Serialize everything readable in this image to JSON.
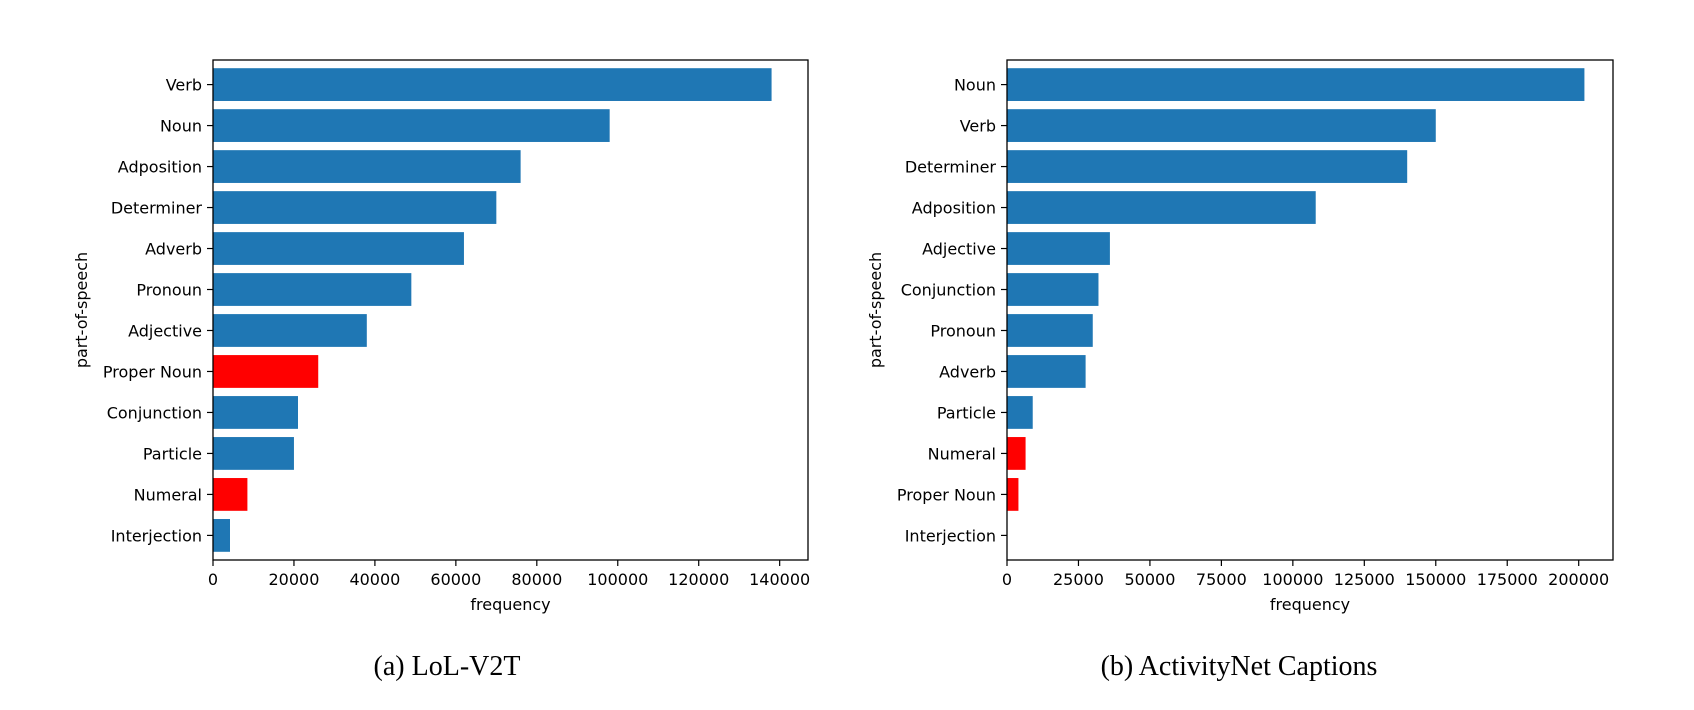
{
  "chart_data": [
    {
      "type": "bar",
      "orientation": "horizontal",
      "caption": "(a) LoL-V2T",
      "xlabel": "frequency",
      "ylabel": "part-of-speech",
      "xlim": [
        0,
        147000
      ],
      "xticks": [
        0,
        20000,
        40000,
        60000,
        80000,
        100000,
        120000,
        140000
      ],
      "grid": false,
      "categories": [
        "Verb",
        "Noun",
        "Adposition",
        "Determiner",
        "Adverb",
        "Pronoun",
        "Adjective",
        "Proper Noun",
        "Conjunction",
        "Particle",
        "Numeral",
        "Interjection"
      ],
      "values": [
        138000,
        98000,
        76000,
        70000,
        62000,
        49000,
        38000,
        26000,
        21000,
        20000,
        8500,
        4200
      ],
      "colors": [
        "#1f77b4",
        "#1f77b4",
        "#1f77b4",
        "#1f77b4",
        "#1f77b4",
        "#1f77b4",
        "#1f77b4",
        "#ff0000",
        "#1f77b4",
        "#1f77b4",
        "#ff0000",
        "#1f77b4"
      ]
    },
    {
      "type": "bar",
      "orientation": "horizontal",
      "caption": "(b) ActivityNet Captions",
      "xlabel": "frequency",
      "ylabel": "part-of-speech",
      "xlim": [
        0,
        212000
      ],
      "xticks": [
        0,
        25000,
        50000,
        75000,
        100000,
        125000,
        150000,
        175000,
        200000
      ],
      "grid": false,
      "categories": [
        "Noun",
        "Verb",
        "Determiner",
        "Adposition",
        "Adjective",
        "Conjunction",
        "Pronoun",
        "Adverb",
        "Particle",
        "Numeral",
        "Proper Noun",
        "Interjection"
      ],
      "values": [
        202000,
        150000,
        140000,
        108000,
        36000,
        32000,
        30000,
        27500,
        9000,
        6500,
        4000,
        0
      ],
      "colors": [
        "#1f77b4",
        "#1f77b4",
        "#1f77b4",
        "#1f77b4",
        "#1f77b4",
        "#1f77b4",
        "#1f77b4",
        "#1f77b4",
        "#1f77b4",
        "#ff0000",
        "#ff0000",
        "#1f77b4"
      ]
    }
  ]
}
